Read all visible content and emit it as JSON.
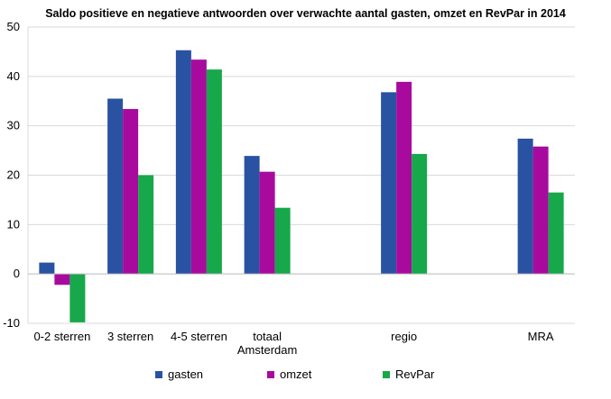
{
  "chart_data": {
    "type": "bar",
    "title": "Saldo positieve en negatieve antwoorden over verwachte aantal gasten, omzet en RevPar in 2014",
    "categories": [
      "0-2 sterren",
      "3 sterren",
      "4-5 sterren",
      "totaal Amsterdam",
      "",
      "regio",
      "",
      "MRA"
    ],
    "category_lines": [
      [
        "0-2 sterren"
      ],
      [
        "3 sterren"
      ],
      [
        "4-5 sterren"
      ],
      [
        "totaal",
        "Amsterdam"
      ],
      [],
      [
        "regio"
      ],
      [],
      [
        "MRA"
      ]
    ],
    "series": [
      {
        "name": "gasten",
        "color": "#2a52a2",
        "values": [
          2.3,
          35.5,
          45.3,
          23.9,
          null,
          36.8,
          null,
          27.4
        ]
      },
      {
        "name": "omzet",
        "color": "#a80a9e",
        "values": [
          -2.2,
          33.4,
          43.4,
          20.7,
          null,
          38.9,
          null,
          25.8
        ]
      },
      {
        "name": "RevPar",
        "color": "#16a84a",
        "values": [
          -9.8,
          20.0,
          41.4,
          13.4,
          null,
          24.3,
          null,
          16.5
        ]
      }
    ],
    "yticks": [
      -10,
      0,
      10,
      20,
      30,
      40,
      50
    ],
    "ylim": [
      -10,
      50
    ],
    "grid": true,
    "legend_position": "bottom"
  }
}
